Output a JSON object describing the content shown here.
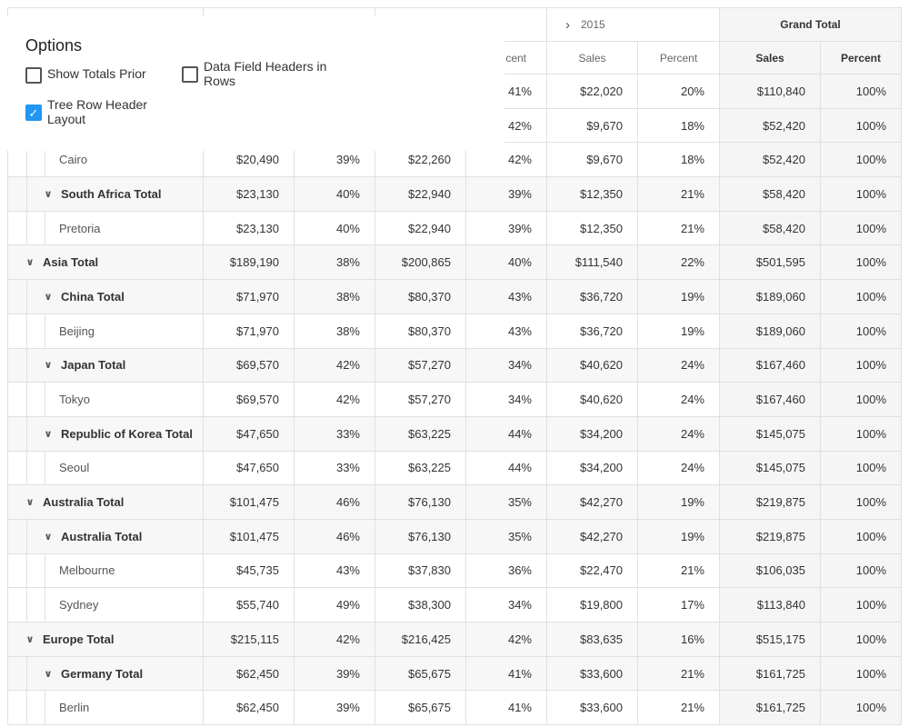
{
  "header": {
    "year_2015": "2015",
    "grand_total": "Grand Total",
    "sales": "Sales",
    "percent": "Percent",
    "percent_partial": "cent"
  },
  "options": {
    "title": "Options",
    "show_totals_prior": {
      "label": "Show Totals Prior",
      "checked": false
    },
    "data_field_headers": {
      "label_line1": "Data Field Headers in",
      "label_line2": "Rows",
      "checked": false
    },
    "tree_row_header": {
      "label_line1": "Tree Row Header",
      "label_line2": "Layout",
      "checked": true
    }
  },
  "rows": [
    {
      "label": "",
      "level": 2,
      "kind": "leaf",
      "v": [
        "",
        "",
        "",
        "41%",
        "$22,020",
        "20%",
        "$110,840",
        "100%"
      ]
    },
    {
      "label": "",
      "level": 2,
      "kind": "leaf",
      "v": [
        "",
        "",
        "",
        "42%",
        "$9,670",
        "18%",
        "$52,420",
        "100%"
      ]
    },
    {
      "label": "Cairo",
      "level": 2,
      "kind": "leaf",
      "v": [
        "$20,490",
        "39%",
        "$22,260",
        "42%",
        "$9,670",
        "18%",
        "$52,420",
        "100%"
      ]
    },
    {
      "label": "South Africa Total",
      "level": 1,
      "kind": "total",
      "v": [
        "$23,130",
        "40%",
        "$22,940",
        "39%",
        "$12,350",
        "21%",
        "$58,420",
        "100%"
      ]
    },
    {
      "label": "Pretoria",
      "level": 2,
      "kind": "leaf",
      "v": [
        "$23,130",
        "40%",
        "$22,940",
        "39%",
        "$12,350",
        "21%",
        "$58,420",
        "100%"
      ]
    },
    {
      "label": "Asia Total",
      "level": 0,
      "kind": "total",
      "v": [
        "$189,190",
        "38%",
        "$200,865",
        "40%",
        "$111,540",
        "22%",
        "$501,595",
        "100%"
      ]
    },
    {
      "label": "China Total",
      "level": 1,
      "kind": "total",
      "v": [
        "$71,970",
        "38%",
        "$80,370",
        "43%",
        "$36,720",
        "19%",
        "$189,060",
        "100%"
      ]
    },
    {
      "label": "Beijing",
      "level": 2,
      "kind": "leaf",
      "v": [
        "$71,970",
        "38%",
        "$80,370",
        "43%",
        "$36,720",
        "19%",
        "$189,060",
        "100%"
      ]
    },
    {
      "label": "Japan Total",
      "level": 1,
      "kind": "total",
      "v": [
        "$69,570",
        "42%",
        "$57,270",
        "34%",
        "$40,620",
        "24%",
        "$167,460",
        "100%"
      ]
    },
    {
      "label": "Tokyo",
      "level": 2,
      "kind": "leaf",
      "v": [
        "$69,570",
        "42%",
        "$57,270",
        "34%",
        "$40,620",
        "24%",
        "$167,460",
        "100%"
      ]
    },
    {
      "label": "Republic of Korea Total",
      "level": 1,
      "kind": "total",
      "v": [
        "$47,650",
        "33%",
        "$63,225",
        "44%",
        "$34,200",
        "24%",
        "$145,075",
        "100%"
      ]
    },
    {
      "label": "Seoul",
      "level": 2,
      "kind": "leaf",
      "v": [
        "$47,650",
        "33%",
        "$63,225",
        "44%",
        "$34,200",
        "24%",
        "$145,075",
        "100%"
      ]
    },
    {
      "label": "Australia Total",
      "level": 0,
      "kind": "total",
      "v": [
        "$101,475",
        "46%",
        "$76,130",
        "35%",
        "$42,270",
        "19%",
        "$219,875",
        "100%"
      ]
    },
    {
      "label": "Australia Total",
      "level": 1,
      "kind": "total",
      "v": [
        "$101,475",
        "46%",
        "$76,130",
        "35%",
        "$42,270",
        "19%",
        "$219,875",
        "100%"
      ]
    },
    {
      "label": "Melbourne",
      "level": 2,
      "kind": "leaf",
      "v": [
        "$45,735",
        "43%",
        "$37,830",
        "36%",
        "$22,470",
        "21%",
        "$106,035",
        "100%"
      ]
    },
    {
      "label": "Sydney",
      "level": 2,
      "kind": "leaf",
      "v": [
        "$55,740",
        "49%",
        "$38,300",
        "34%",
        "$19,800",
        "17%",
        "$113,840",
        "100%"
      ]
    },
    {
      "label": "Europe Total",
      "level": 0,
      "kind": "total",
      "v": [
        "$215,115",
        "42%",
        "$216,425",
        "42%",
        "$83,635",
        "16%",
        "$515,175",
        "100%"
      ]
    },
    {
      "label": "Germany Total",
      "level": 1,
      "kind": "total",
      "v": [
        "$62,450",
        "39%",
        "$65,675",
        "41%",
        "$33,600",
        "21%",
        "$161,725",
        "100%"
      ]
    },
    {
      "label": "Berlin",
      "level": 2,
      "kind": "leaf",
      "v": [
        "$62,450",
        "39%",
        "$65,675",
        "41%",
        "$33,600",
        "21%",
        "$161,725",
        "100%"
      ]
    }
  ],
  "icons": {
    "expand_right": "chevron-right-icon",
    "collapse_down": "chevron-down-icon",
    "check": "check-icon"
  }
}
